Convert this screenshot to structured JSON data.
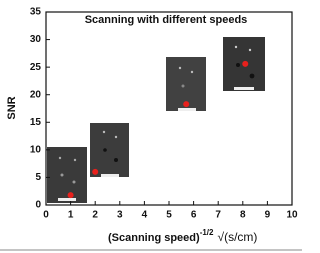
{
  "chart_data": {
    "type": "scatter",
    "title": "Scanning with different speeds",
    "x_label": {
      "text": "(Scanning speed)",
      "superscript": "-1/2",
      "unit": "√(s/cm)"
    },
    "y_label": "SNR",
    "x": [
      1,
      2,
      5.7,
      8.1
    ],
    "values": [
      1.8,
      6,
      18.3,
      25.6
    ],
    "color": "#e8201c",
    "xlim": [
      0,
      10
    ],
    "xticks": [
      0,
      1,
      2,
      3,
      4,
      5,
      6,
      7,
      8,
      9,
      10
    ],
    "ylim": [
      0,
      35
    ],
    "yticks": [
      0,
      5,
      10,
      15,
      20,
      25,
      30,
      35
    ]
  }
}
